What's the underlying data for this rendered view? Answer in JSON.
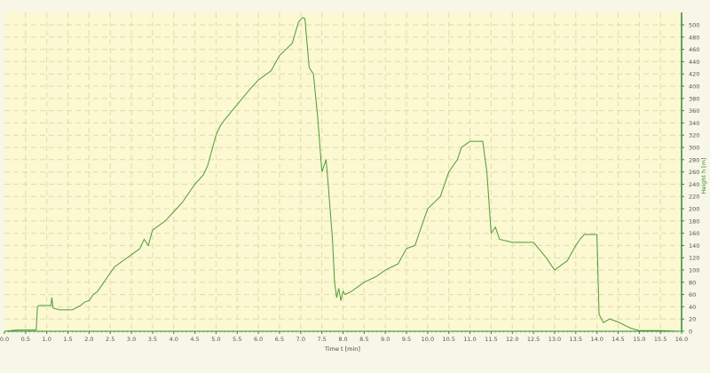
{
  "chart_data": {
    "type": "line",
    "xlabel": "Time  t  [min]",
    "ylabel": "Height  h  [m]",
    "xlim": [
      0,
      16
    ],
    "ylim": [
      0,
      520
    ],
    "x_ticks": [
      "0.0",
      "0.5",
      "1.0",
      "1.5",
      "2.0",
      "2.5",
      "3.0",
      "3.5",
      "4.0",
      "4.5",
      "5.0",
      "5.5",
      "6.0",
      "6.5",
      "7.0",
      "7.5",
      "8.0",
      "8.5",
      "9.0",
      "9.5",
      "10.0",
      "10.5",
      "11.0",
      "11.5",
      "12.0",
      "12.5",
      "13.0",
      "13.5",
      "14.0",
      "14.5",
      "15.0",
      "15.5",
      "16.0"
    ],
    "y_ticks": [
      "0",
      "20",
      "40",
      "60",
      "80",
      "100",
      "120",
      "140",
      "160",
      "180",
      "200",
      "220",
      "240",
      "260",
      "280",
      "300",
      "320",
      "340",
      "360",
      "380",
      "400",
      "420",
      "440",
      "460",
      "480",
      "500"
    ],
    "grid": true,
    "y_axis_side": "right",
    "colors": {
      "background": "#f8f6e6",
      "plot": "#fbf8d2",
      "grid": "#e0dca8",
      "line": "#4e9a3a",
      "axis": "#2e8b2e"
    },
    "series": [
      {
        "x": [
          0,
          0.3,
          0.75,
          0.78,
          0.82,
          1.1,
          1.12,
          1.15,
          1.3,
          1.6,
          1.8,
          1.9,
          2.0,
          2.1,
          2.2,
          2.3,
          2.5,
          2.6,
          2.8,
          3.0,
          3.2,
          3.3,
          3.4,
          3.5,
          3.8,
          4.0,
          4.2,
          4.5,
          4.7,
          4.8,
          5.0,
          5.1,
          5.2,
          5.5,
          5.8,
          6.0,
          6.3,
          6.5,
          6.8,
          6.95,
          7.05,
          7.1,
          7.2,
          7.3,
          7.4,
          7.5,
          7.6,
          7.65,
          7.75,
          7.8,
          7.85,
          7.9,
          7.95,
          8.0,
          8.05,
          8.2,
          8.5,
          8.8,
          9.0,
          9.3,
          9.5,
          9.7,
          9.8,
          10.0,
          10.3,
          10.5,
          10.7,
          10.8,
          11.0,
          11.3,
          11.4,
          11.5,
          11.6,
          11.7,
          12.0,
          12.5,
          12.8,
          13.0,
          13.3,
          13.5,
          13.6,
          13.7,
          14.0,
          14.05,
          14.15,
          14.3,
          14.5,
          14.8,
          15.0,
          15.5,
          16.0
        ],
        "y": [
          0,
          2,
          2,
          40,
          42,
          42,
          55,
          38,
          35,
          35,
          42,
          48,
          50,
          60,
          65,
          75,
          95,
          105,
          115,
          125,
          135,
          150,
          140,
          165,
          180,
          195,
          210,
          240,
          255,
          270,
          320,
          335,
          345,
          370,
          395,
          410,
          425,
          450,
          470,
          505,
          512,
          510,
          430,
          420,
          350,
          260,
          280,
          240,
          150,
          80,
          55,
          70,
          50,
          65,
          60,
          65,
          80,
          90,
          100,
          110,
          135,
          140,
          160,
          200,
          220,
          260,
          280,
          300,
          310,
          310,
          260,
          160,
          170,
          150,
          145,
          145,
          120,
          100,
          115,
          140,
          150,
          158,
          158,
          28,
          14,
          20,
          15,
          5,
          1,
          1,
          0
        ]
      }
    ]
  }
}
